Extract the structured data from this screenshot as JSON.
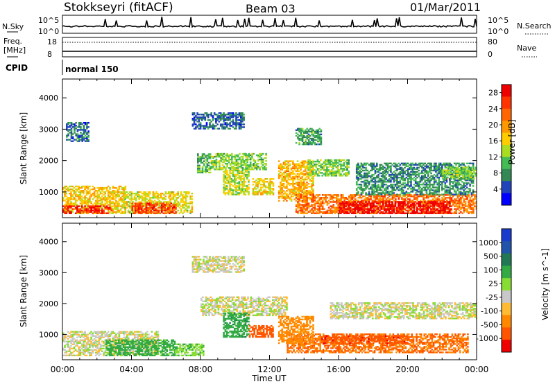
{
  "header": {
    "title": "Stokkseyri (fitACF)",
    "beam": "Beam 03",
    "date": "01/Mar/2011"
  },
  "status_panels": {
    "nsky_label": "N.Sky",
    "nsky_ticks": [
      "10^5",
      "10^0"
    ],
    "nsearch_label": "N.Search",
    "nsearch_ticks": [
      "10^5",
      "10^0"
    ],
    "freq_label_1": "Freq.",
    "freq_label_2": "[MHz]",
    "freq_ticks": [
      "18",
      "8"
    ],
    "nave_label": "Nave",
    "nave_ticks": [
      "80",
      "0"
    ],
    "cpid_label": "CPID",
    "cpid_value": "normal 150"
  },
  "colors": {
    "power_scale": [
      "#0000ff",
      "#2244bb",
      "#338855",
      "#44bb55",
      "#aadd22",
      "#ffcc00",
      "#ff9900",
      "#ff6600",
      "#ff3300",
      "#ee0000"
    ],
    "velocity_scale": [
      "#1a3ccc",
      "#2255aa",
      "#227755",
      "#33aa44",
      "#88dd33",
      "#c8c8c8",
      "#ffbb33",
      "#ff8800",
      "#ff5500",
      "#ee0000"
    ]
  },
  "chart_data": [
    {
      "type": "heatmap",
      "name": "power",
      "ylabel": "Slant Range [km]",
      "xlabel": "Time UT",
      "xticks": [
        "00:00",
        "04:00",
        "08:00",
        "12:00",
        "16:00",
        "20:00",
        "00:00"
      ],
      "yticks": [
        "1000",
        "2000",
        "3000",
        "4000"
      ],
      "xlim_hours": [
        0,
        24
      ],
      "ylim_km": [
        180,
        4600
      ],
      "colorbar_label": "Power [dB]",
      "colorbar_ticks": [
        "4",
        "8",
        "12",
        "16",
        "20",
        "24",
        "28"
      ],
      "colorbar_range": [
        0,
        30
      ],
      "regions": [
        {
          "t": [
            0,
            3.6
          ],
          "r": [
            300,
            1200
          ],
          "v": 17
        },
        {
          "t": [
            0,
            2.8
          ],
          "r": [
            300,
            550
          ],
          "v": 27
        },
        {
          "t": [
            3.5,
            7.5
          ],
          "r": [
            300,
            1000
          ],
          "v": 15
        },
        {
          "t": [
            4,
            6.6
          ],
          "r": [
            300,
            650
          ],
          "v": 25
        },
        {
          "t": [
            7.8,
            8.6
          ],
          "r": [
            1600,
            2200
          ],
          "v": 10
        },
        {
          "t": [
            8.6,
            11.8
          ],
          "r": [
            1700,
            2200
          ],
          "v": 12
        },
        {
          "t": [
            9.3,
            10.8
          ],
          "r": [
            900,
            1700
          ],
          "v": 14
        },
        {
          "t": [
            11,
            12.2
          ],
          "r": [
            900,
            1400
          ],
          "v": 16
        },
        {
          "t": [
            12.5,
            14.5
          ],
          "r": [
            700,
            2000
          ],
          "v": 18
        },
        {
          "t": [
            13.5,
            24
          ],
          "r": [
            300,
            900
          ],
          "v": 22
        },
        {
          "t": [
            16,
            22.5
          ],
          "r": [
            300,
            700
          ],
          "v": 29
        },
        {
          "t": [
            14.2,
            16.6
          ],
          "r": [
            1500,
            2000
          ],
          "v": 12
        },
        {
          "t": [
            17,
            23.8
          ],
          "r": [
            900,
            1900
          ],
          "v": 8
        },
        {
          "t": [
            22,
            24
          ],
          "r": [
            1400,
            1800
          ],
          "v": 12
        },
        {
          "t": [
            0.2,
            1.5
          ],
          "r": [
            2600,
            3200
          ],
          "v": 6
        },
        {
          "t": [
            7.5,
            10.5
          ],
          "r": [
            3000,
            3500
          ],
          "v": 6
        },
        {
          "t": [
            13.5,
            15
          ],
          "r": [
            2500,
            3000
          ],
          "v": 9
        }
      ]
    },
    {
      "type": "heatmap",
      "name": "velocity",
      "ylabel": "Slant Range [km]",
      "xlabel": "Time UT",
      "xticks": [
        "00:00",
        "04:00",
        "08:00",
        "12:00",
        "16:00",
        "20:00",
        "00:00"
      ],
      "yticks": [
        "1000",
        "2000",
        "3000",
        "4000"
      ],
      "xlim_hours": [
        0,
        24
      ],
      "ylim_km": [
        180,
        4600
      ],
      "colorbar_label": "Velocity [m s^-1]",
      "colorbar_ticks": [
        "1000",
        "500",
        "100",
        "25",
        "-25",
        "-100",
        "-500",
        "-1000"
      ],
      "regions": [
        {
          "t": [
            0,
            5.5
          ],
          "r": [
            300,
            1100
          ],
          "v": 0
        },
        {
          "t": [
            2.5,
            6.5
          ],
          "r": [
            300,
            800
          ],
          "v": 150
        },
        {
          "t": [
            6.5,
            8.2
          ],
          "r": [
            300,
            700
          ],
          "v": 80
        },
        {
          "t": [
            8,
            13
          ],
          "r": [
            1600,
            2200
          ],
          "v": 0
        },
        {
          "t": [
            9.3,
            10.8
          ],
          "r": [
            900,
            1700
          ],
          "v": 200
        },
        {
          "t": [
            10.8,
            12.2
          ],
          "r": [
            900,
            1300
          ],
          "v": -300
        },
        {
          "t": [
            13,
            23.5
          ],
          "r": [
            400,
            1000
          ],
          "v": -250
        },
        {
          "t": [
            15.5,
            24
          ],
          "r": [
            1500,
            2000
          ],
          "v": 0
        },
        {
          "t": [
            15,
            20
          ],
          "r": [
            700,
            950
          ],
          "v": -450
        },
        {
          "t": [
            7.5,
            10.5
          ],
          "r": [
            3000,
            3500
          ],
          "v": 0
        },
        {
          "t": [
            12.5,
            14.5
          ],
          "r": [
            700,
            1600
          ],
          "v": -150
        }
      ]
    }
  ]
}
